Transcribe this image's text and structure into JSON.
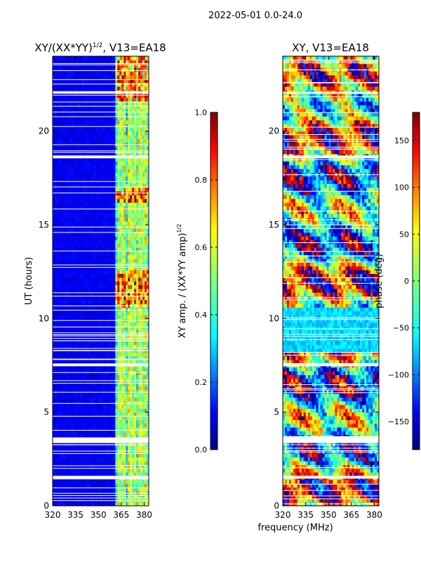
{
  "figure": {
    "suptitle": "2022-05-01 0.0-24.0",
    "xlabel": "frequency (MHz)"
  },
  "chart_data": [
    {
      "type": "heatmap",
      "title": "XY/(XX*YY)^1/2, V13=EA18",
      "title_base": "XY/(XX*YY)",
      "title_sup": "1/2",
      "title_tail": ", V13=EA18",
      "xlabel": "frequency (MHz)",
      "ylabel": "UT (hours)",
      "xlim": [
        320,
        383
      ],
      "ylim": [
        0,
        24
      ],
      "xticks": [
        320,
        335,
        350,
        365,
        380
      ],
      "yticks": [
        0,
        5,
        10,
        15,
        20
      ],
      "colorscale": "jet",
      "data_gaps_hours": [
        [
          3.35,
          3.65
        ],
        [
          1.45,
          1.6
        ],
        [
          7.45,
          7.6
        ],
        [
          18.55,
          18.7
        ],
        [
          22.0,
          22.1
        ]
      ],
      "colorbar": {
        "label_base": "XY amp. / (XX*YY amp)",
        "label_sup": "1/2",
        "range": [
          0.0,
          1.0
        ],
        "ticks": [
          0.0,
          0.2,
          0.4,
          0.6,
          0.8,
          1.0
        ],
        "tick_labels": [
          "0.0",
          "0.2",
          "0.4",
          "0.6",
          "0.8",
          "1.0"
        ]
      }
    },
    {
      "type": "heatmap",
      "title": "XY, V13=EA18",
      "xlabel": "frequency (MHz)",
      "ylabel": "",
      "xlim": [
        320,
        383
      ],
      "ylim": [
        0,
        24
      ],
      "xticks": [
        320,
        335,
        350,
        365,
        380
      ],
      "yticks": [
        0,
        5,
        10,
        15,
        20
      ],
      "colorscale": "jet",
      "colorbar": {
        "label": "phase (deg)",
        "range": [
          -180,
          180
        ],
        "ticks": [
          -150,
          -100,
          -50,
          0,
          50,
          100,
          150
        ],
        "tick_labels": [
          "−150",
          "−100",
          "−50",
          "0",
          "50",
          "100",
          "150"
        ]
      }
    }
  ],
  "colors": {
    "jet_stops": [
      "#00007f",
      "#0000ff",
      "#007fff",
      "#00ffff",
      "#7fff7f",
      "#ffff00",
      "#ff7f00",
      "#ff0000",
      "#7f0000"
    ]
  }
}
